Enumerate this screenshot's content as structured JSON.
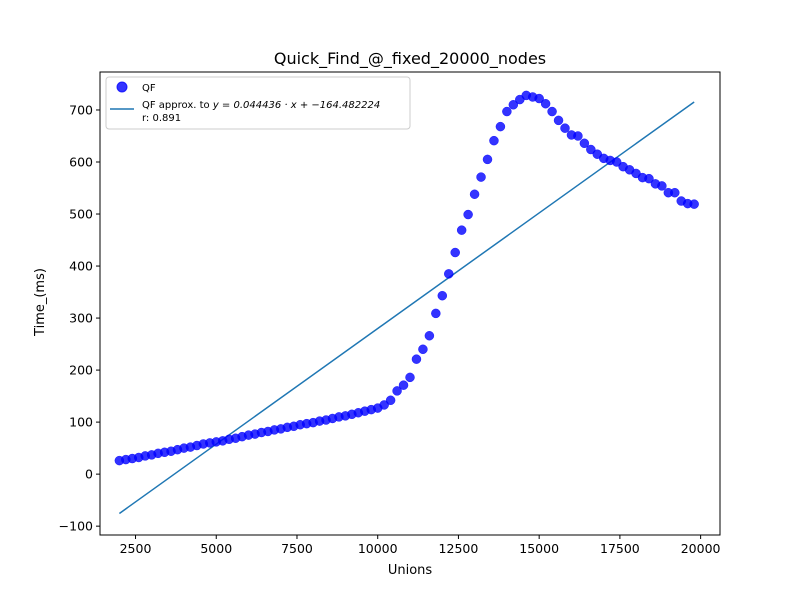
{
  "chart_data": {
    "type": "scatter",
    "title": "Quick_Find_@_fixed_20000_nodes",
    "xlabel": "Unions",
    "ylabel": "Time_(ms)",
    "xlim": [
      1400,
      20600
    ],
    "ylim": [
      -117,
      773
    ],
    "xticks": [
      2500,
      5000,
      7500,
      10000,
      12500,
      15000,
      17500,
      20000
    ],
    "yticks": [
      -100,
      0,
      100,
      200,
      300,
      400,
      500,
      600,
      700
    ],
    "grid": false,
    "legend_position": "top-left",
    "legend": {
      "scatter_label": "QF",
      "line_label": "QF approx. to y = 0.044436 · x + −164.482224",
      "line_label_prefix": "QF approx. to ",
      "line_label_math": "y = 0.044436 · x + −164.482224",
      "line_r": "r: 0.891"
    },
    "series": [
      {
        "name": "QF",
        "kind": "scatter",
        "color": "#0000ff",
        "x": [
          2000,
          2200,
          2400,
          2600,
          2800,
          3000,
          3200,
          3400,
          3600,
          3800,
          4000,
          4200,
          4400,
          4600,
          4800,
          5000,
          5200,
          5400,
          5600,
          5800,
          6000,
          6200,
          6400,
          6600,
          6800,
          7000,
          7200,
          7400,
          7600,
          7800,
          8000,
          8200,
          8400,
          8600,
          8800,
          9000,
          9200,
          9400,
          9600,
          9800,
          10000,
          10200,
          10400,
          10600,
          10800,
          11000,
          11200,
          11400,
          11600,
          11800,
          12000,
          12200,
          12400,
          12600,
          12800,
          13000,
          13200,
          13400,
          13600,
          13800,
          14000,
          14200,
          14400,
          14600,
          14800,
          15000,
          15200,
          15400,
          15600,
          15800,
          16000,
          16200,
          16400,
          16600,
          16800,
          17000,
          17200,
          17400,
          17600,
          17800,
          18000,
          18200,
          18400,
          18600,
          18800,
          19000,
          19200,
          19400,
          19600,
          19800
        ],
        "y": [
          26,
          28,
          30,
          32,
          35,
          37,
          40,
          42,
          44,
          47,
          50,
          52,
          55,
          58,
          60,
          62,
          64,
          67,
          69,
          72,
          75,
          77,
          80,
          82,
          85,
          87,
          90,
          92,
          95,
          97,
          99,
          102,
          104,
          107,
          110,
          112,
          115,
          118,
          121,
          124,
          127,
          133,
          142,
          160,
          171,
          186,
          221,
          240,
          266,
          309,
          343,
          385,
          426,
          469,
          499,
          538,
          571,
          605,
          641,
          668,
          697,
          710,
          720,
          728,
          725,
          722,
          712,
          697,
          680,
          665,
          652,
          650,
          636,
          624,
          615,
          607,
          603,
          600,
          591,
          585,
          578,
          570,
          568,
          558,
          554,
          541,
          541,
          525,
          520,
          519
        ]
      },
      {
        "name": "QF approx. to y = 0.044436 · x + −164.482224",
        "kind": "line",
        "color": "#1f77b4",
        "x": [
          2000,
          19800
        ],
        "y": [
          -75.61,
          715.38
        ]
      }
    ]
  }
}
